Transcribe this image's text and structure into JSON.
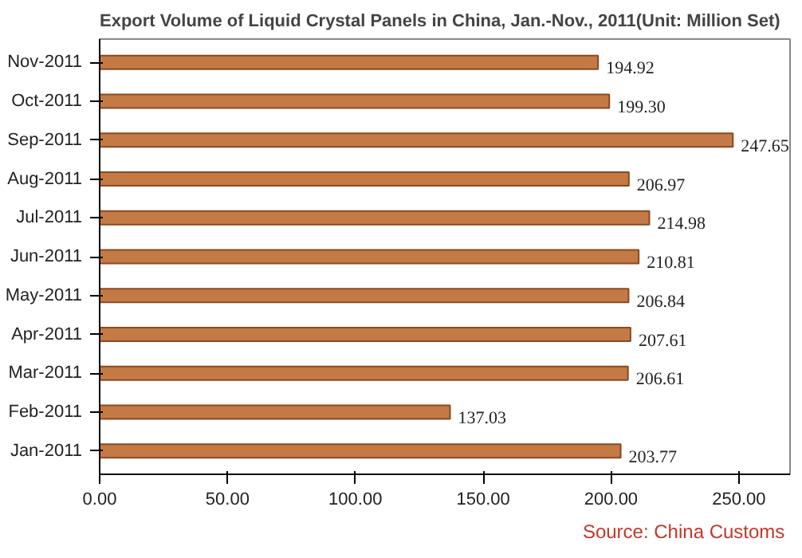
{
  "chart_data": {
    "type": "bar",
    "orientation": "horizontal",
    "title": "Export Volume of Liquid Crystal Panels in China, Jan.-Nov., 2011(Unit: Million Set)",
    "categories": [
      "Nov-2011",
      "Oct-2011",
      "Sep-2011",
      "Aug-2011",
      "Jul-2011",
      "Jun-2011",
      "May-2011",
      "Apr-2011",
      "Mar-2011",
      "Feb-2011",
      "Jan-2011"
    ],
    "values": [
      194.92,
      199.3,
      247.65,
      206.97,
      214.98,
      210.81,
      206.84,
      207.61,
      206.61,
      137.03,
      203.77
    ],
    "value_labels": [
      "194.92",
      "199.30",
      "247.65",
      "206.97",
      "214.98",
      "210.81",
      "206.84",
      "207.61",
      "206.61",
      "137.03",
      "203.77"
    ],
    "color": "#c47a45",
    "xlim": [
      0,
      270
    ],
    "xticks": [
      {
        "value": 0,
        "label": "0.00"
      },
      {
        "value": 50,
        "label": "50.00"
      },
      {
        "value": 100,
        "label": "100.00"
      },
      {
        "value": 150,
        "label": "150.00"
      },
      {
        "value": 200,
        "label": "200.00"
      },
      {
        "value": 250,
        "label": "250.00"
      }
    ],
    "grid": false,
    "annotations": [
      "Source:  China Customs"
    ]
  }
}
